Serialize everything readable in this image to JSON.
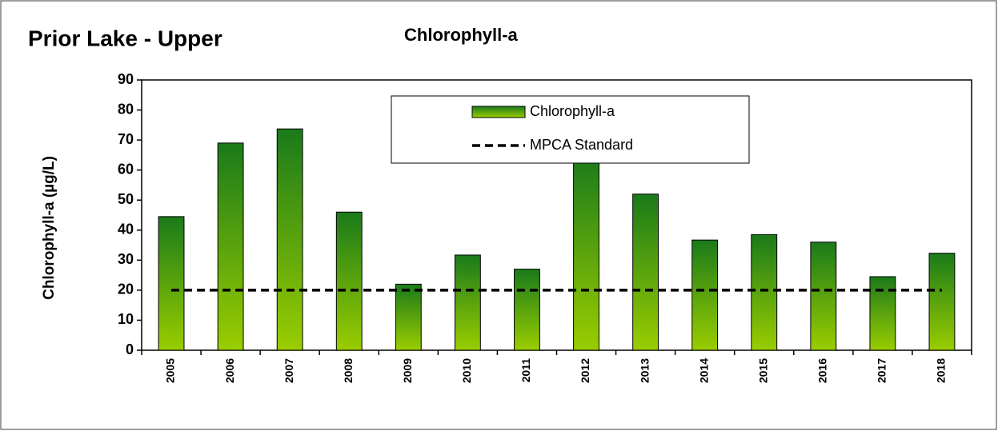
{
  "chart_data": {
    "type": "bar",
    "title": "Prior Lake - Upper",
    "subtitle": "Chlorophyll-a",
    "y_label": "Chlorophyll-a (µg/L)",
    "categories": [
      "2005",
      "2006",
      "2007",
      "2008",
      "2009",
      "2010",
      "2011",
      "2012",
      "2013",
      "2014",
      "2015",
      "2016",
      "2017",
      "2018"
    ],
    "series": [
      {
        "name": "Chlorophyll-a",
        "type": "bar",
        "color": [
          "#1a7a1a",
          "#9acd00"
        ],
        "values": [
          44.5,
          69,
          73.7,
          46,
          22,
          31.7,
          27,
          65,
          52,
          36.7,
          38.5,
          36,
          24.5,
          32.3
        ]
      },
      {
        "name": "MPCA Standard",
        "type": "line",
        "dashed": true,
        "color": "#000000",
        "values": [
          20,
          20,
          20,
          20,
          20,
          20,
          20,
          20,
          20,
          20,
          20,
          20,
          20,
          20
        ]
      }
    ],
    "ylim": [
      0,
      90
    ],
    "yticks": [
      0,
      10,
      20,
      30,
      40,
      50,
      60,
      70,
      80,
      90
    ],
    "grid": false
  }
}
